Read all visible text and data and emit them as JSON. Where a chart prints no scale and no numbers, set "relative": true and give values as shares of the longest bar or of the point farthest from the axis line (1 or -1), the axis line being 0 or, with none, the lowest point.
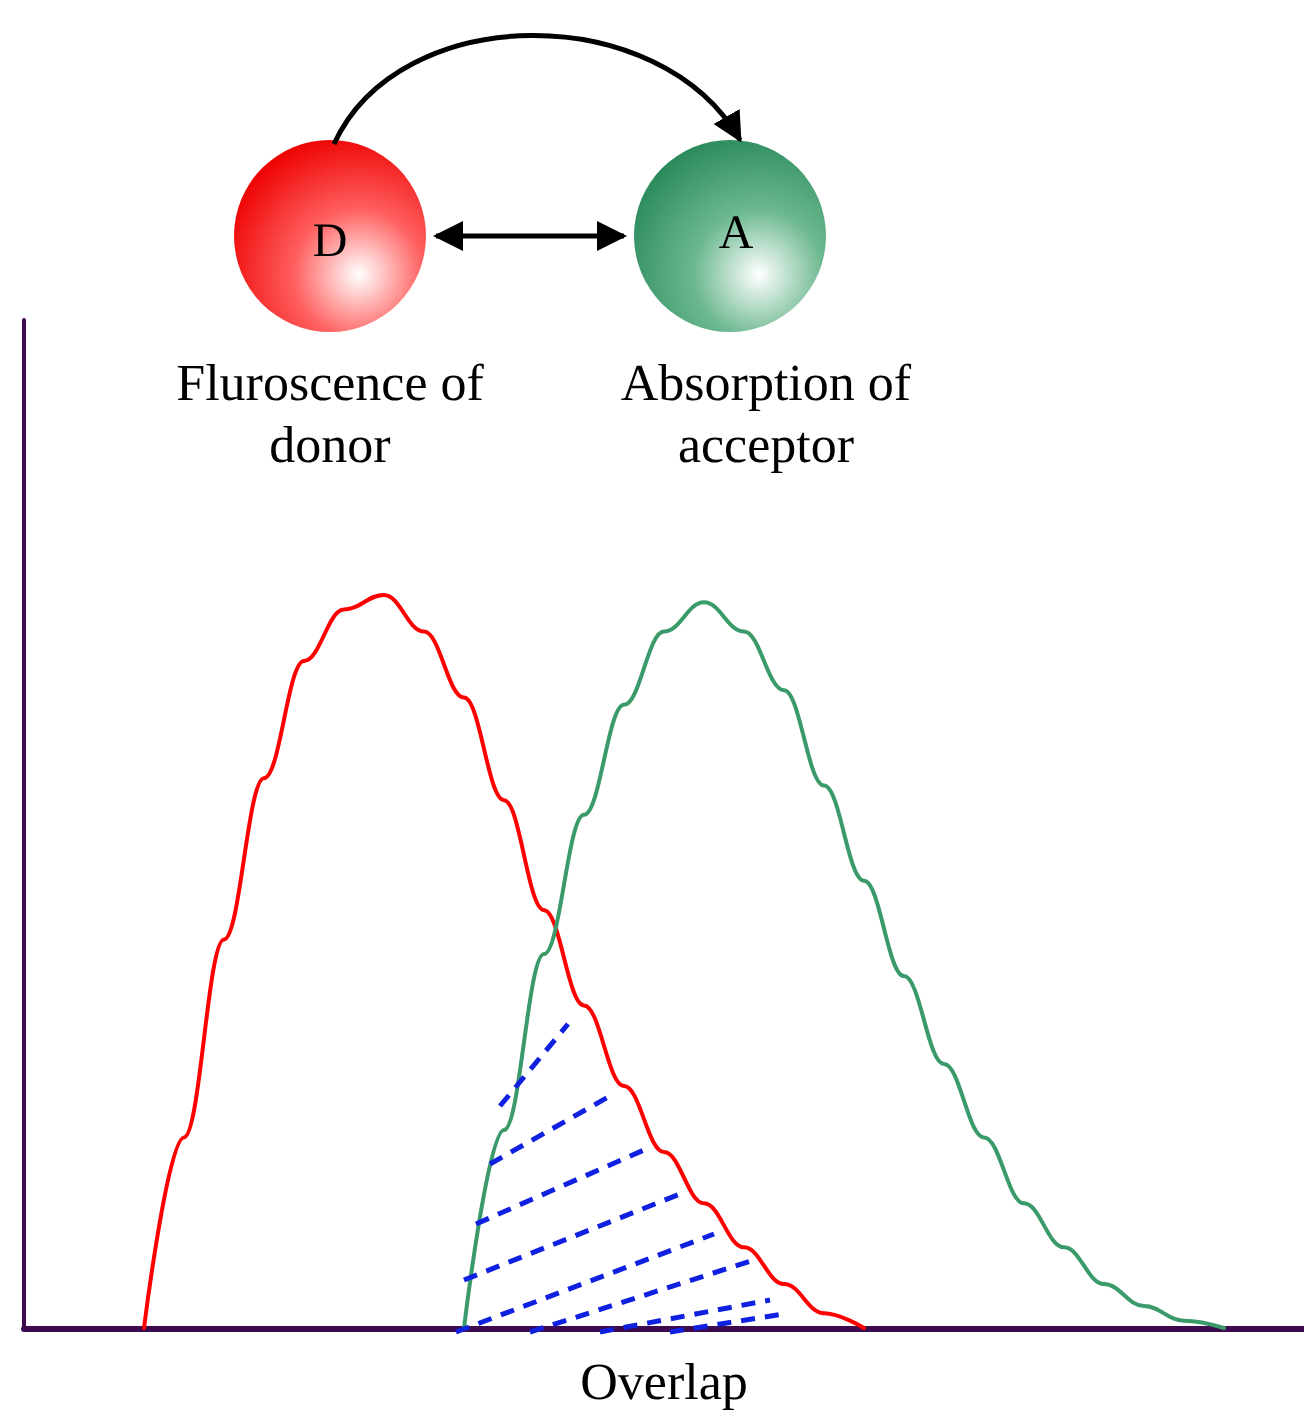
{
  "chart_data": {
    "type": "line",
    "relative": true,
    "xlabel": "Overlap",
    "marker": "none",
    "line_style": "solid",
    "grid": false,
    "annotations": [
      "D",
      "A",
      "Fluroscence of donor",
      "Absorption of acceptor"
    ],
    "categories": [
      null,
      null,
      null,
      null,
      null,
      null,
      null,
      null,
      null,
      null,
      null,
      null,
      null,
      null,
      null,
      null,
      null,
      null,
      null,
      null,
      null,
      null,
      null,
      null,
      null,
      null,
      null,
      null,
      null,
      null,
      null,
      null,
      null
    ],
    "series": [
      {
        "color": "#ff0000",
        "values": [
          null,
          null,
          null,
          0,
          0.26,
          0.53,
          0.75,
          0.91,
          0.98,
          1.0,
          0.95,
          0.86,
          0.72,
          0.57,
          0.44,
          0.33,
          0.24,
          0.17,
          0.11,
          0.06,
          0.02,
          0,
          null,
          null,
          null,
          null,
          null,
          null,
          null,
          null,
          null,
          null,
          null
        ]
      },
      {
        "color": "#3a9a6a",
        "values": [
          null,
          null,
          null,
          null,
          null,
          null,
          null,
          null,
          null,
          null,
          null,
          0,
          0.27,
          0.51,
          0.7,
          0.85,
          0.95,
          0.99,
          0.95,
          0.87,
          0.74,
          0.61,
          0.48,
          0.36,
          0.26,
          0.17,
          0.11,
          0.06,
          0.03,
          0.01,
          0,
          null,
          null
        ]
      }
    ]
  }
}
